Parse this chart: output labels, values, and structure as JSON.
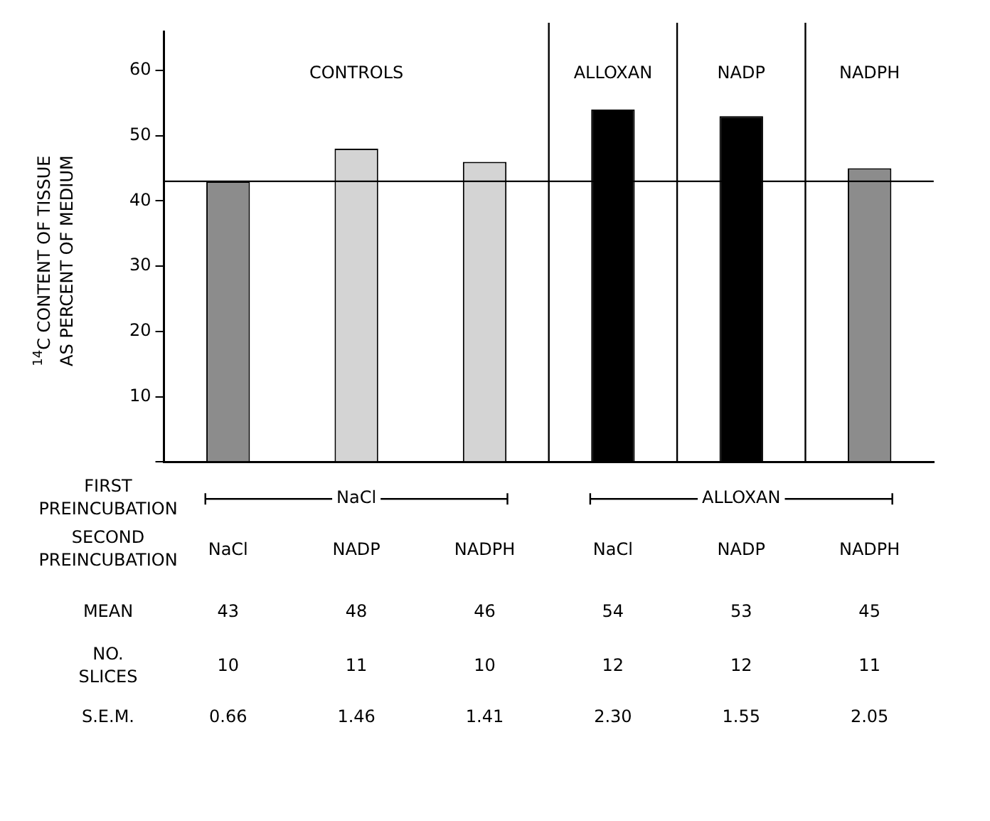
{
  "chart_data": {
    "type": "bar",
    "ylabel": "$^{14}$C CONTENT OF TISSUE AS PERCENT OF MEDIUM",
    "categories": [
      "NaCl",
      "NADP",
      "NADPH",
      "NaCl",
      "NADP",
      "NADPH"
    ],
    "values": [
      43,
      48,
      46,
      54,
      53,
      45
    ],
    "colors": [
      "#8c8c8c",
      "#d4d4d4",
      "#d4d4d4",
      "#000000",
      "#000000",
      "#8c8c8c"
    ],
    "ylim": [
      0,
      66
    ],
    "yticks": [
      {
        "value": 0,
        "label": null
      },
      10,
      20,
      30,
      40,
      50,
      60
    ],
    "grid": false,
    "data_labels": true,
    "ref_lines": [
      {
        "axis": "y",
        "value": 43
      }
    ],
    "annotations": [
      "FIRST PREINCUBATION",
      "NaCl",
      "ALLOXAN",
      "SECOND PREINCUBATION",
      "MEAN",
      "NO. SLICES",
      "10",
      "11",
      "10",
      "12",
      "12",
      "11",
      "S.E.M.",
      "0.66",
      "1.46",
      "1.41",
      "2.30",
      "1.55",
      "2.05",
      "CONTROLS",
      "ALLOXAN",
      "NADP",
      "NADPH"
    ]
  }
}
